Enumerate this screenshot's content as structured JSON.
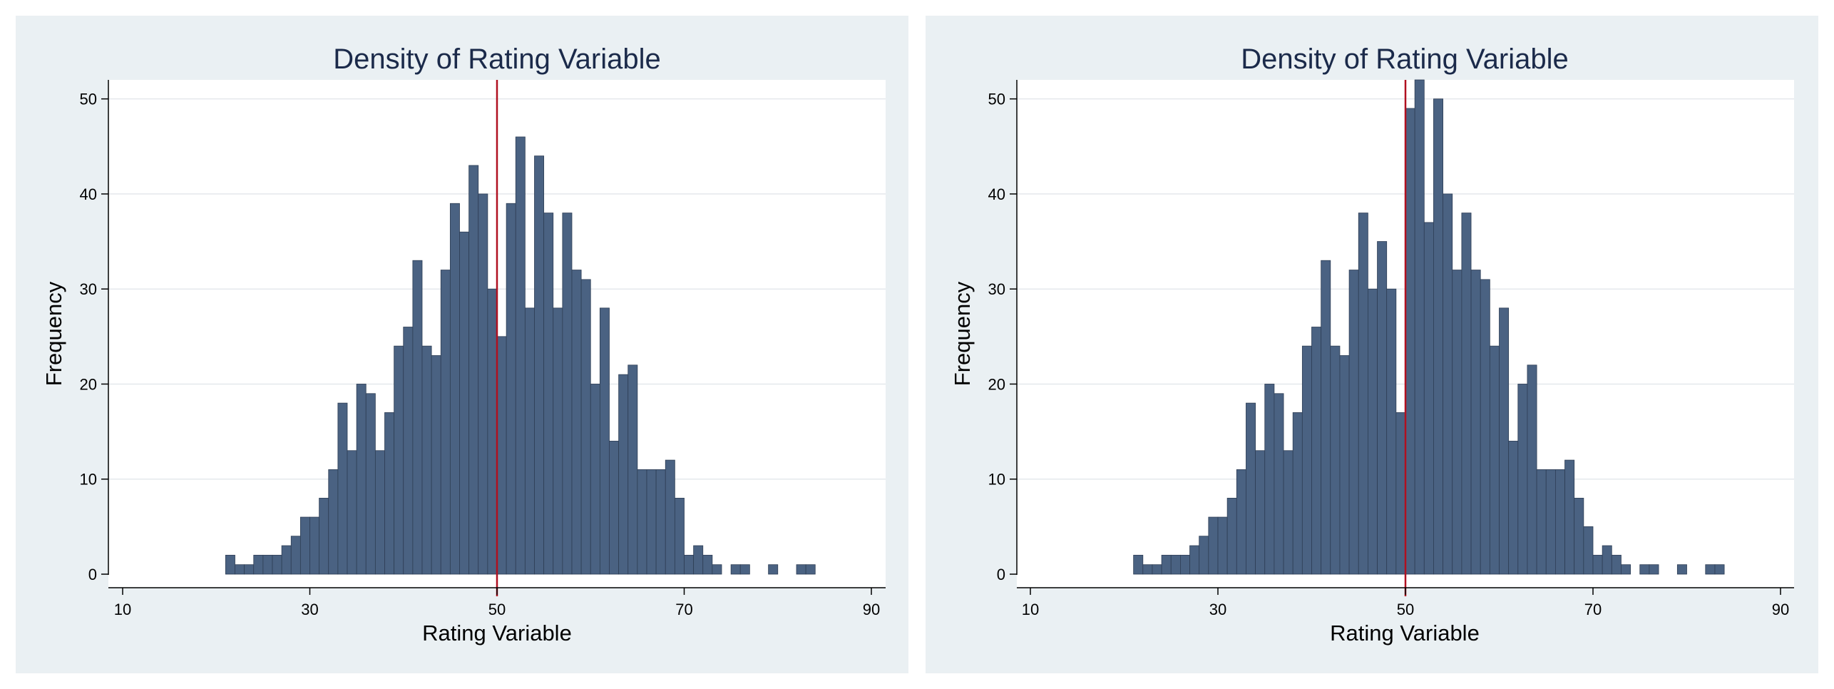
{
  "chart_data": [
    {
      "type": "bar",
      "title": "Density of Rating Variable",
      "xlabel": "Rating Variable",
      "ylabel": "Frequency",
      "xlim": [
        10,
        90
      ],
      "ylim": [
        0,
        52
      ],
      "xticks": [
        10,
        30,
        50,
        70,
        90
      ],
      "yticks": [
        0,
        10,
        20,
        30,
        40,
        50
      ],
      "grid": true,
      "cutoff": 50,
      "bin_start": 21,
      "bin_width": 1,
      "bar_color": "#4a6282",
      "cutoff_color": "#b01020",
      "panel_bg": "#eaf0f3",
      "values": [
        2,
        1,
        1,
        2,
        2,
        2,
        3,
        4,
        6,
        6,
        8,
        11,
        18,
        13,
        20,
        19,
        13,
        17,
        24,
        26,
        33,
        24,
        23,
        32,
        39,
        36,
        43,
        40,
        30,
        25,
        39,
        46,
        28,
        44,
        38,
        28,
        38,
        32,
        31,
        20,
        28,
        14,
        21,
        22,
        11,
        11,
        11,
        12,
        8,
        2,
        3,
        2,
        1,
        0,
        1,
        1,
        0,
        0,
        1,
        0,
        0,
        1,
        1
      ]
    },
    {
      "type": "bar",
      "title": "Density of Rating Variable",
      "xlabel": "Rating Variable",
      "ylabel": "Frequency",
      "xlim": [
        10,
        90
      ],
      "ylim": [
        0,
        52
      ],
      "xticks": [
        10,
        30,
        50,
        70,
        90
      ],
      "yticks": [
        0,
        10,
        20,
        30,
        40,
        50
      ],
      "grid": true,
      "cutoff": 50,
      "bin_start": 21,
      "bin_width": 1,
      "bar_color": "#4a6282",
      "cutoff_color": "#b01020",
      "panel_bg": "#eaf0f3",
      "values": [
        2,
        1,
        1,
        2,
        2,
        2,
        3,
        4,
        6,
        6,
        8,
        11,
        18,
        13,
        20,
        19,
        13,
        17,
        24,
        26,
        33,
        24,
        23,
        32,
        38,
        30,
        35,
        30,
        17,
        49,
        52,
        37,
        50,
        40,
        32,
        38,
        32,
        31,
        24,
        28,
        14,
        20,
        22,
        11,
        11,
        11,
        12,
        8,
        5,
        2,
        3,
        2,
        1,
        0,
        1,
        1,
        0,
        0,
        1,
        0,
        0,
        1,
        1
      ]
    }
  ]
}
